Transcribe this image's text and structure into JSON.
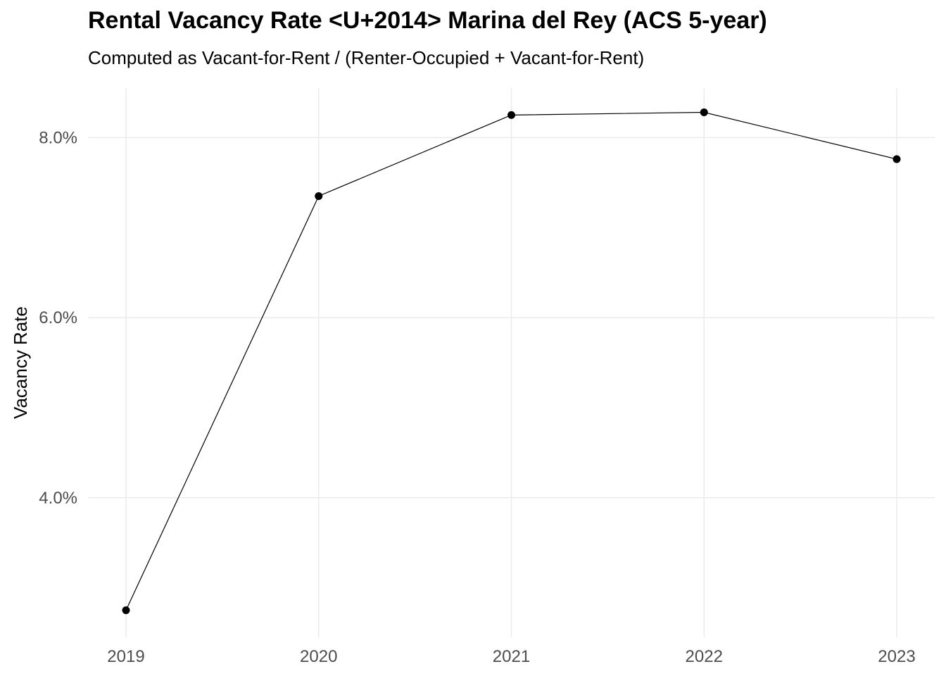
{
  "title": "Rental Vacancy Rate <U+2014> Marina del Rey (ACS 5-year)",
  "subtitle": "Computed as Vacant-for-Rent / (Renter-Occupied + Vacant-for-Rent)",
  "chart_data": {
    "type": "line",
    "title": "Rental Vacancy Rate <U+2014> Marina del Rey (ACS 5-year)",
    "subtitle": "Computed as Vacant-for-Rent / (Renter-Occupied + Vacant-for-Rent)",
    "xlabel": "",
    "ylabel": "Vacancy Rate",
    "x": [
      "2019",
      "2020",
      "2021",
      "2022",
      "2023"
    ],
    "series": [
      {
        "values": [
          0.0275,
          0.0735,
          0.0825,
          0.0828,
          0.0776
        ]
      }
    ],
    "y_ticks": [
      0.04,
      0.06,
      0.08
    ],
    "y_tick_labels": [
      "4.0%",
      "6.0%",
      "8.0%"
    ],
    "ylim": [
      0.0245,
      0.0855
    ],
    "grid": true,
    "line_color": "#000000",
    "point_color": "#000000",
    "grid_color": "#ebebeb"
  }
}
